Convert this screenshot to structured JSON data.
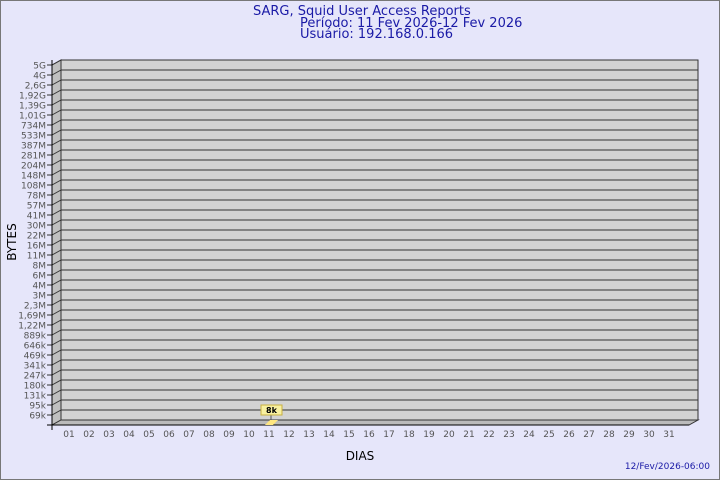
{
  "title_lines": [
    "SARG, Squid User Access Reports",
    "Período: 11 Fev 2026-12 Fev 2026",
    "Usuário: 192.168.0.166"
  ],
  "footer_date": "12/Fev/2026-06:00",
  "colors": {
    "background": "#e6e6fa",
    "plot": "#d3d3d3",
    "wall": "#c0c0c0",
    "bar": "#ffe680",
    "label_bg": "#f8f0a0",
    "title": "#1a1aa6"
  },
  "chart_data": {
    "type": "bar",
    "xlabel": "DIAS",
    "ylabel": "BYTES",
    "y_scale": "log",
    "grid": true,
    "categories": [
      "01",
      "02",
      "03",
      "04",
      "05",
      "06",
      "07",
      "08",
      "09",
      "10",
      "11",
      "12",
      "13",
      "14",
      "15",
      "16",
      "17",
      "18",
      "19",
      "20",
      "21",
      "22",
      "23",
      "24",
      "25",
      "26",
      "27",
      "28",
      "29",
      "30",
      "31"
    ],
    "y_tick_labels": [
      "5G",
      "4G",
      "2,6G",
      "1,92G",
      "1,39G",
      "1,01G",
      "734M",
      "533M",
      "387M",
      "281M",
      "204M",
      "148M",
      "108M",
      "78M",
      "57M",
      "41M",
      "30M",
      "22M",
      "16M",
      "11M",
      "8M",
      "6M",
      "4M",
      "3M",
      "2,3M",
      "1,69M",
      "1,22M",
      "889k",
      "646k",
      "469k",
      "341k",
      "247k",
      "180k",
      "131k",
      "95k",
      "69k"
    ],
    "bars": [
      {
        "category": "11",
        "value": 8000,
        "label": "8k"
      }
    ]
  }
}
